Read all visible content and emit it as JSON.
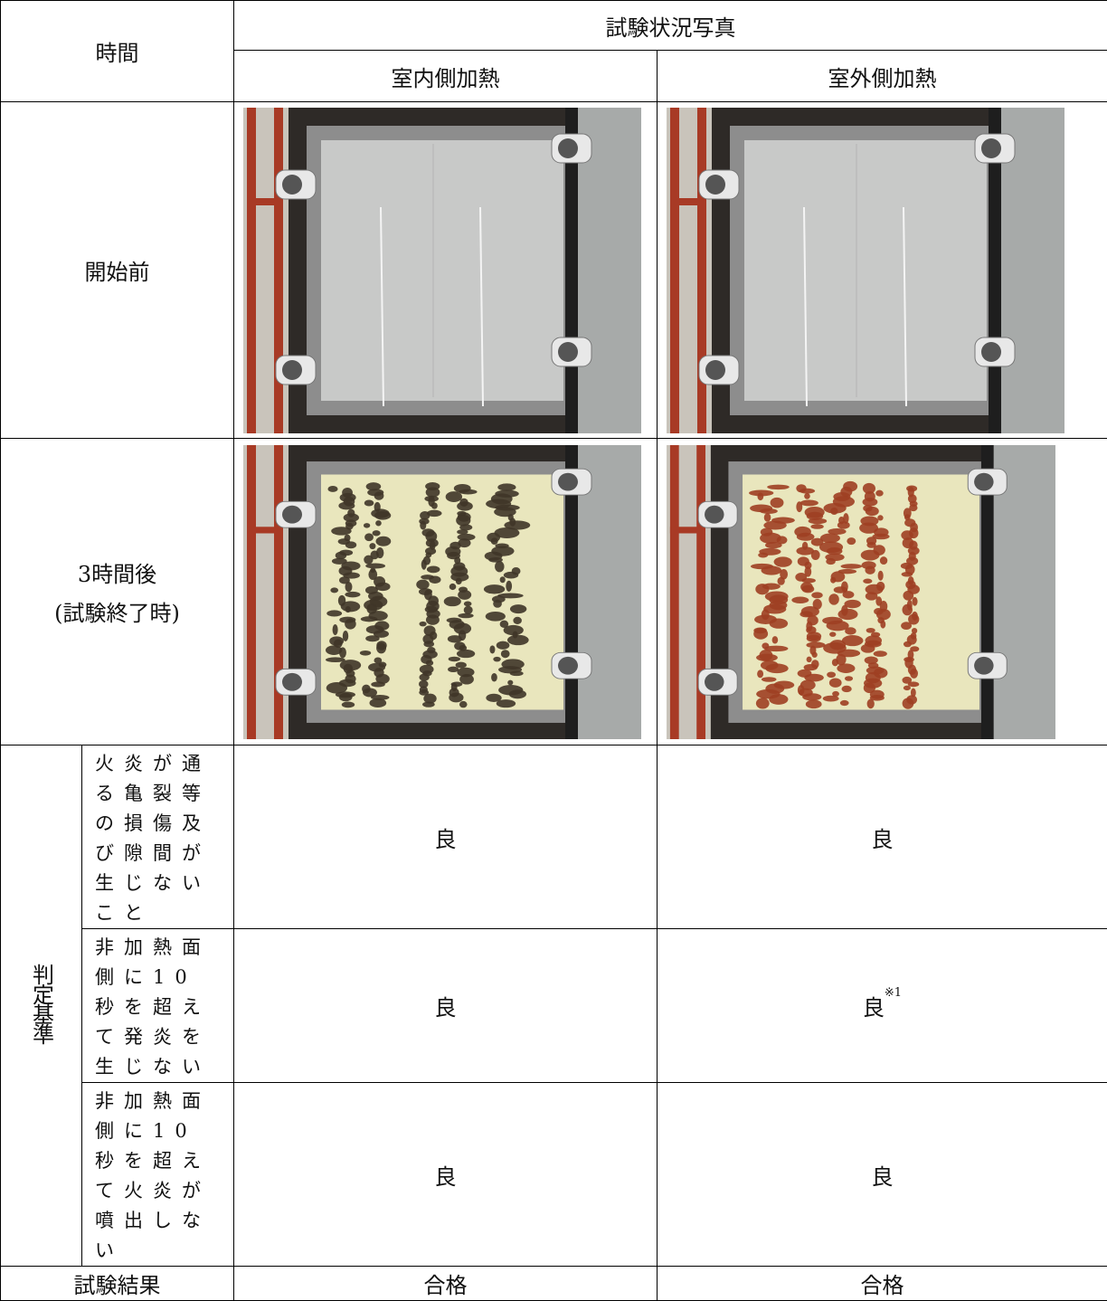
{
  "table": {
    "header": {
      "time": "時間",
      "photos": "試験状況写真",
      "indoor": "室内側加熱",
      "outdoor": "室外側加熱"
    },
    "rows": [
      {
        "label": "開始前"
      },
      {
        "label": "3時間後",
        "sublabel": "(試験終了時)"
      }
    ],
    "criteria": {
      "label": "判定基準",
      "items": [
        {
          "text": "火炎が通る亀裂等の損傷及び隙間が生じないこと",
          "indoor": "良",
          "outdoor": "良"
        },
        {
          "text": "非加熱面側に10秒を超えて発炎を生じない",
          "indoor": "良",
          "outdoor": "良",
          "outdoor_note": "※1"
        },
        {
          "text": "非加熱面側に10秒を超えて火炎が噴出しない",
          "indoor": "良",
          "outdoor": "良"
        }
      ]
    },
    "result": {
      "label": "試験結果",
      "indoor": "合格",
      "outdoor": "合格"
    }
  }
}
